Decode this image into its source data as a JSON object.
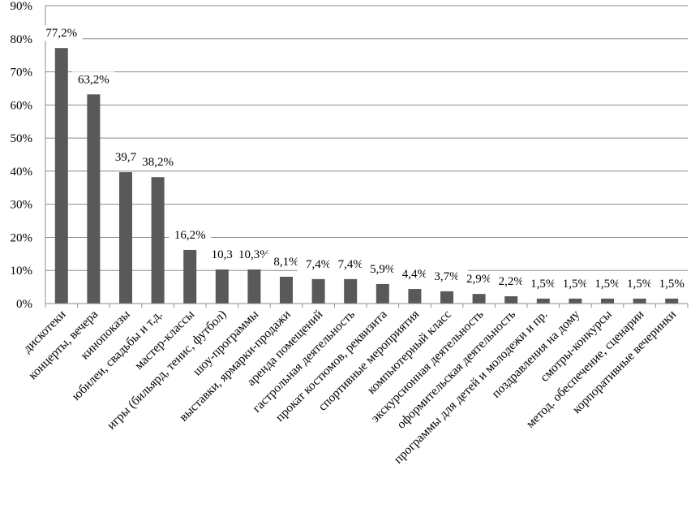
{
  "chart_data": {
    "type": "bar",
    "title": "",
    "xlabel": "",
    "ylabel": "",
    "ylim": [
      0,
      90
    ],
    "grid": true,
    "legend": "none",
    "bar_color": "#595959",
    "y_ticks": [
      "0%",
      "10%",
      "20%",
      "30%",
      "40%",
      "50%",
      "60%",
      "70%",
      "80%",
      "90%"
    ],
    "categories": [
      "дискотеки",
      "концерты, вечера",
      "кинопоказы",
      "юбилеи, свадьбы и т.д.",
      "мастер-классы",
      "игры (бильярд, тенис, футбол)",
      "шоу-программы",
      "выставки, ярмарки-продажи",
      "аренда помещений",
      "гастрольная деятельность",
      "прокат костюмов, реквизита",
      "спортивные мероприятия",
      "компьютерный класс",
      "экскурсионная деятельность",
      "оформительская деятельность",
      "программы для детей и молодежи и пр.",
      "поздравления на дому",
      "смотры-конкурсы",
      "метод. обеспечение, сценарии",
      "корпоративные вечеринки"
    ],
    "values": [
      77.2,
      63.2,
      39.7,
      38.2,
      16.2,
      10.3,
      10.3,
      8.1,
      7.4,
      7.4,
      5.9,
      4.4,
      3.7,
      2.9,
      2.2,
      1.5,
      1.5,
      1.5,
      1.5,
      1.5
    ],
    "data_labels": [
      "77,2%",
      "63,2%",
      "39,7",
      "38,2%",
      "16,2%",
      "10,3",
      "10,3%",
      "8,1%",
      "7,4%",
      "7,4%",
      "5,9%",
      "4,4%",
      "3,7%",
      "2,9%",
      "2,2%",
      "1,5%",
      "1,5%",
      "1,5%",
      "1,5%",
      "1,5%"
    ]
  }
}
